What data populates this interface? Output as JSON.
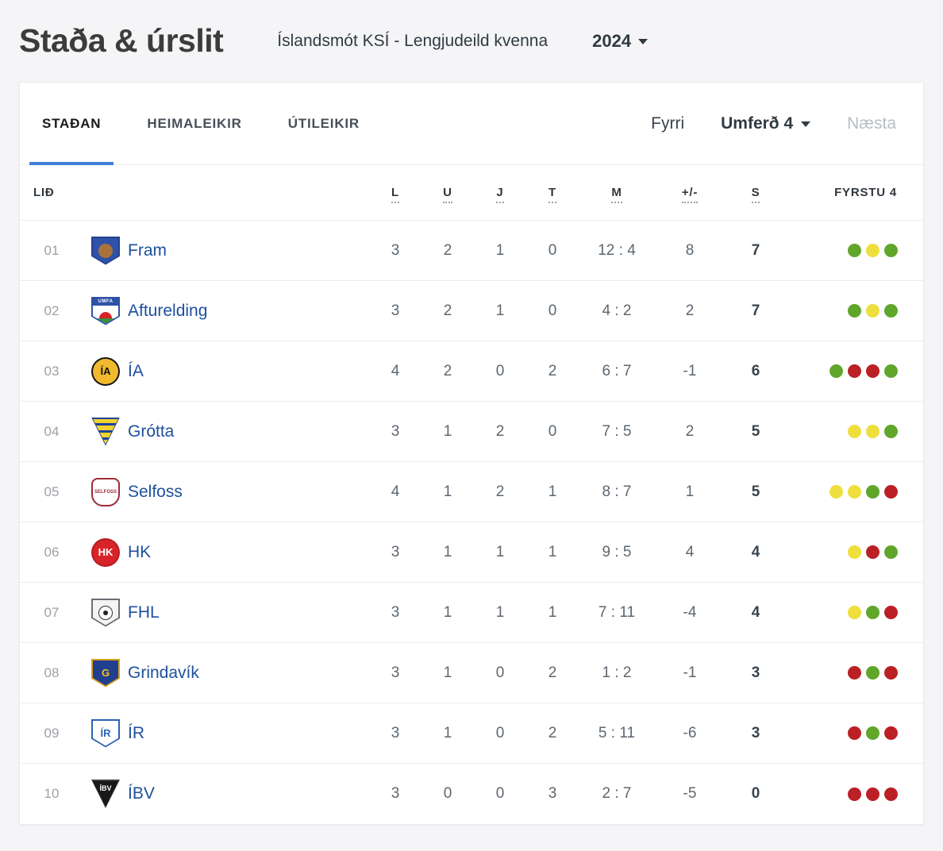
{
  "page": {
    "title": "Staða & úrslit",
    "competition": "Íslandsmót KSÍ - Lengjudeild kvenna",
    "season": "2024"
  },
  "tabs": [
    {
      "label": "STAÐAN",
      "active": true
    },
    {
      "label": "HEIMALEIKIR",
      "active": false
    },
    {
      "label": "ÚTILEIKIR",
      "active": false
    }
  ],
  "round_nav": {
    "previous": "Fyrri",
    "current": "Umferð 4",
    "next": "Næsta"
  },
  "form_colors": {
    "win": "#5fa62b",
    "draw": "#eedf3d",
    "loss": "#bb2025"
  },
  "table": {
    "headers": {
      "team": "LIÐ",
      "played": "L",
      "wins": "U",
      "draws": "J",
      "losses": "T",
      "goals": "M",
      "diff": "+/-",
      "points": "S",
      "form": "FYRSTU 4"
    },
    "rows": [
      {
        "pos": "01",
        "team": "Fram",
        "played": "3",
        "wins": "2",
        "draws": "1",
        "losses": "0",
        "goals": "12 : 4",
        "diff": "8",
        "points": "7",
        "form": [
          "win",
          "draw",
          "win"
        ],
        "logo": {
          "shape": "shield",
          "bg": "#2d52a8",
          "border": "#24438c",
          "kind": "ball",
          "text": "",
          "text_color": "#a8733a"
        }
      },
      {
        "pos": "02",
        "team": "Afturelding",
        "played": "3",
        "wins": "2",
        "draws": "1",
        "losses": "0",
        "goals": "4 : 2",
        "diff": "2",
        "points": "7",
        "form": [
          "win",
          "draw",
          "win"
        ],
        "logo": {
          "shape": "shield",
          "bg": "#ffffff",
          "border": "#2d52a8",
          "kind": "umfa",
          "text": "UMFA",
          "text_color": "#ffffff"
        }
      },
      {
        "pos": "03",
        "team": "ÍA",
        "played": "4",
        "wins": "2",
        "draws": "0",
        "losses": "2",
        "goals": "6 : 7",
        "diff": "-1",
        "points": "6",
        "form": [
          "win",
          "loss",
          "loss",
          "win"
        ],
        "logo": {
          "shape": "circle",
          "bg": "#f0b92e",
          "border": "#151515",
          "kind": "text",
          "text": "ÍA",
          "text_color": "#151515"
        }
      },
      {
        "pos": "04",
        "team": "Grótta",
        "played": "3",
        "wins": "1",
        "draws": "2",
        "losses": "0",
        "goals": "7 : 5",
        "diff": "2",
        "points": "5",
        "form": [
          "draw",
          "draw",
          "win"
        ],
        "logo": {
          "shape": "triangle",
          "bg": "#f2d22e",
          "border": "#1f4199",
          "kind": "stripes",
          "text": "",
          "text_color": "#1f4199"
        }
      },
      {
        "pos": "05",
        "team": "Selfoss",
        "played": "4",
        "wins": "1",
        "draws": "2",
        "losses": "1",
        "goals": "8 : 7",
        "diff": "1",
        "points": "5",
        "form": [
          "draw",
          "draw",
          "win",
          "loss"
        ],
        "logo": {
          "shape": "crest",
          "bg": "#ffffff",
          "border": "#9e2b38",
          "kind": "text",
          "text": "SELFOSS",
          "text_color": "#9e2b38"
        }
      },
      {
        "pos": "06",
        "team": "HK",
        "played": "3",
        "wins": "1",
        "draws": "1",
        "losses": "1",
        "goals": "9 : 5",
        "diff": "4",
        "points": "4",
        "form": [
          "draw",
          "loss",
          "win"
        ],
        "logo": {
          "shape": "circle",
          "bg": "#d8232a",
          "border": "#b71c22",
          "kind": "text",
          "text": "HK",
          "text_color": "#ffffff"
        }
      },
      {
        "pos": "07",
        "team": "FHL",
        "played": "3",
        "wins": "1",
        "draws": "1",
        "losses": "1",
        "goals": "7 : 11",
        "diff": "-4",
        "points": "4",
        "form": [
          "draw",
          "win",
          "loss"
        ],
        "logo": {
          "shape": "shield",
          "bg": "#f4f4f4",
          "border": "#6a6f75",
          "kind": "football",
          "text": "",
          "text_color": "#222222"
        }
      },
      {
        "pos": "08",
        "team": "Grindavík",
        "played": "3",
        "wins": "1",
        "draws": "0",
        "losses": "2",
        "goals": "1 : 2",
        "diff": "-1",
        "points": "3",
        "form": [
          "loss",
          "win",
          "loss"
        ],
        "logo": {
          "shape": "shield",
          "bg": "#223f8f",
          "border": "#d8a019",
          "kind": "text",
          "text": "G",
          "text_color": "#f5c21b"
        }
      },
      {
        "pos": "09",
        "team": "ÍR",
        "played": "3",
        "wins": "1",
        "draws": "0",
        "losses": "2",
        "goals": "5 : 11",
        "diff": "-6",
        "points": "3",
        "form": [
          "loss",
          "win",
          "loss"
        ],
        "logo": {
          "shape": "shield",
          "bg": "#ffffff",
          "border": "#2d62b5",
          "kind": "text",
          "text": "ÍR",
          "text_color": "#2d62b5"
        }
      },
      {
        "pos": "10",
        "team": "ÍBV",
        "played": "3",
        "wins": "0",
        "draws": "0",
        "losses": "3",
        "goals": "2 : 7",
        "diff": "-5",
        "points": "0",
        "form": [
          "loss",
          "loss",
          "loss"
        ],
        "logo": {
          "shape": "triangle",
          "bg": "#17181a",
          "border": "#3a3b3e",
          "kind": "text",
          "text": "ÍBV",
          "text_color": "#ffffff"
        }
      }
    ]
  }
}
